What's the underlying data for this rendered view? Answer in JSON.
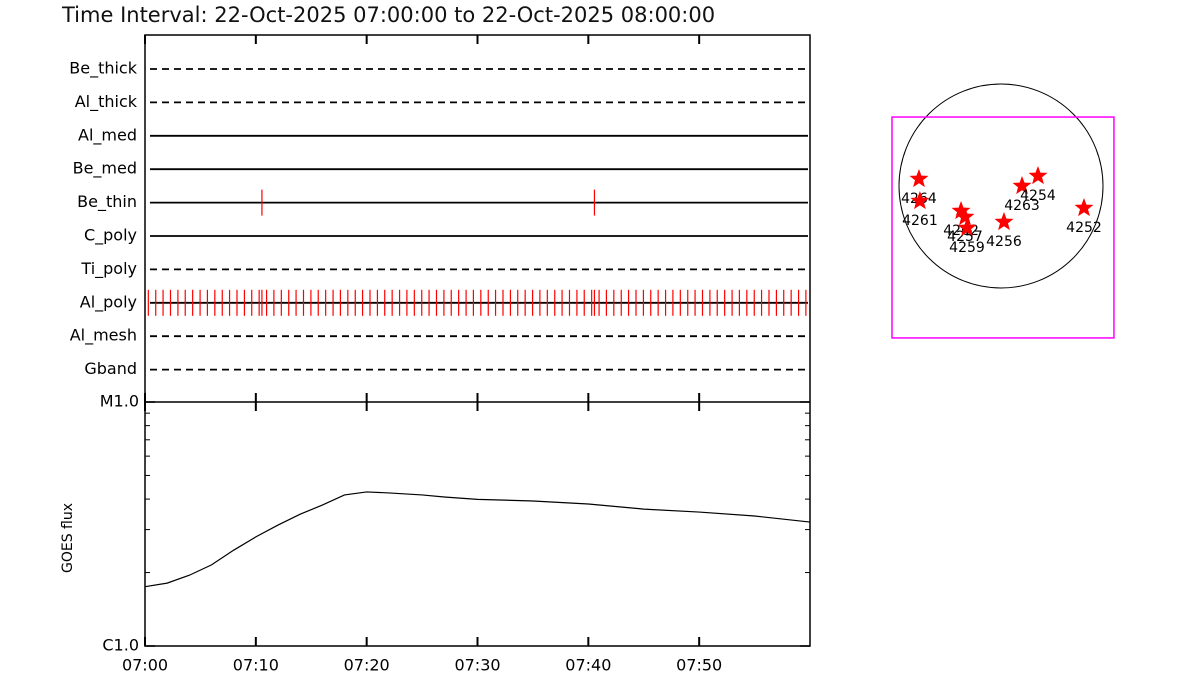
{
  "chart_data": [
    {
      "type": "timeline",
      "title": "Time Interval: 22-Oct-2025 07:00:00 to 22-Oct-2025 08:00:00",
      "xlim": [
        0,
        60
      ],
      "xticks": [
        0,
        10,
        20,
        30,
        40,
        50
      ],
      "series": [
        {
          "name": "Be_thick",
          "dash": "dashed",
          "color": "#ff0000",
          "values": []
        },
        {
          "name": "Al_thick",
          "dash": "dashed",
          "color": "#ff0000",
          "values": []
        },
        {
          "name": "Al_med",
          "dash": "solid",
          "color": "#ff0000",
          "values": []
        },
        {
          "name": "Be_med",
          "dash": "solid",
          "color": "#ff0000",
          "values": []
        },
        {
          "name": "Be_thin",
          "dash": "solid",
          "color": "#ff0000",
          "values": [
            10.55,
            40.55
          ]
        },
        {
          "name": "C_poly",
          "dash": "solid",
          "color": "#ff0000",
          "values": []
        },
        {
          "name": "Ti_poly",
          "dash": "dashed",
          "color": "#ff0000",
          "values": []
        },
        {
          "name": "Al_poly",
          "dash": "solid",
          "color": "#ff0000",
          "values": [
            0.3,
            0.97,
            1.63,
            2.3,
            2.97,
            3.63,
            4.3,
            4.97,
            5.63,
            6.3,
            6.97,
            7.63,
            8.3,
            8.97,
            9.63,
            10.3,
            10.55,
            10.97,
            11.63,
            12.3,
            12.97,
            13.63,
            14.3,
            14.97,
            15.63,
            16.3,
            16.97,
            17.63,
            18.3,
            18.97,
            19.63,
            20.3,
            20.97,
            21.63,
            22.3,
            22.97,
            23.63,
            24.3,
            24.97,
            25.63,
            26.3,
            26.97,
            27.63,
            28.3,
            28.97,
            29.63,
            30.3,
            30.97,
            31.63,
            32.3,
            32.97,
            33.63,
            34.3,
            34.97,
            35.63,
            36.3,
            36.97,
            37.63,
            38.3,
            38.97,
            39.63,
            40.3,
            40.55,
            40.97,
            41.63,
            42.3,
            42.97,
            43.63,
            44.3,
            44.97,
            45.63,
            46.3,
            46.97,
            47.63,
            48.3,
            48.97,
            49.63,
            50.3,
            50.97,
            51.63,
            52.3,
            52.97,
            53.63,
            54.3,
            54.97,
            55.63,
            56.3,
            56.97,
            57.63,
            58.3,
            58.97,
            59.63
          ]
        },
        {
          "name": "Al_mesh",
          "dash": "dashed",
          "color": "#ff0000",
          "values": []
        },
        {
          "name": "Gband",
          "dash": "dashed",
          "color": "#ff0000",
          "values": []
        }
      ]
    },
    {
      "type": "line",
      "y_label": "GOES flux",
      "log_y": true,
      "color": "#000000",
      "xlim": [
        0,
        60
      ],
      "xticks": [
        {
          "value": 0,
          "label": "07:00"
        },
        {
          "value": 10,
          "label": "07:10"
        },
        {
          "value": 20,
          "label": "07:20"
        },
        {
          "value": 30,
          "label": "07:30"
        },
        {
          "value": 40,
          "label": "07:40"
        },
        {
          "value": 50,
          "label": "07:50"
        }
      ],
      "ylim": [
        1e-06,
        1e-05
      ],
      "yticks": [
        {
          "value": 1e-06,
          "label": "C1.0"
        },
        {
          "value": 1e-05,
          "label": "M1.0"
        }
      ],
      "yminorticks": [
        2e-06,
        3e-06,
        4e-06,
        5e-06,
        6e-06,
        7e-06,
        8e-06,
        9e-06
      ],
      "x": [
        0,
        2,
        4,
        6,
        8,
        10,
        12,
        14,
        16,
        18,
        20,
        22,
        25,
        27,
        30,
        35,
        40,
        45,
        50,
        55,
        60
      ],
      "values": [
        1.75e-06,
        1.81e-06,
        1.95e-06,
        2.15e-06,
        2.47e-06,
        2.8e-06,
        3.13e-06,
        3.47e-06,
        3.78e-06,
        4.16e-06,
        4.28e-06,
        4.24e-06,
        4.16e-06,
        4.08e-06,
        3.99e-06,
        3.93e-06,
        3.82e-06,
        3.64e-06,
        3.54e-06,
        3.41e-06,
        3.22e-06
      ]
    },
    {
      "type": "sunmap",
      "sun_radius": 960,
      "limb_color": "#000000",
      "marker_color": "#ff0000",
      "fov": {
        "color": "#ff00ff",
        "xlim": [
          -1026,
          1063
        ],
        "ylim": [
          -1430,
          649
        ]
      },
      "labels": [
        "4264",
        "4261",
        "4262",
        "4257",
        "4259",
        "4256",
        "4263",
        "4254",
        "4252"
      ],
      "x": [
        -772,
        -763,
        -376,
        -339,
        -320,
        28,
        198,
        348,
        781
      ],
      "values": [
        66,
        -141,
        -235,
        -292,
        -395,
        -339,
        0,
        94,
        -207
      ]
    }
  ]
}
